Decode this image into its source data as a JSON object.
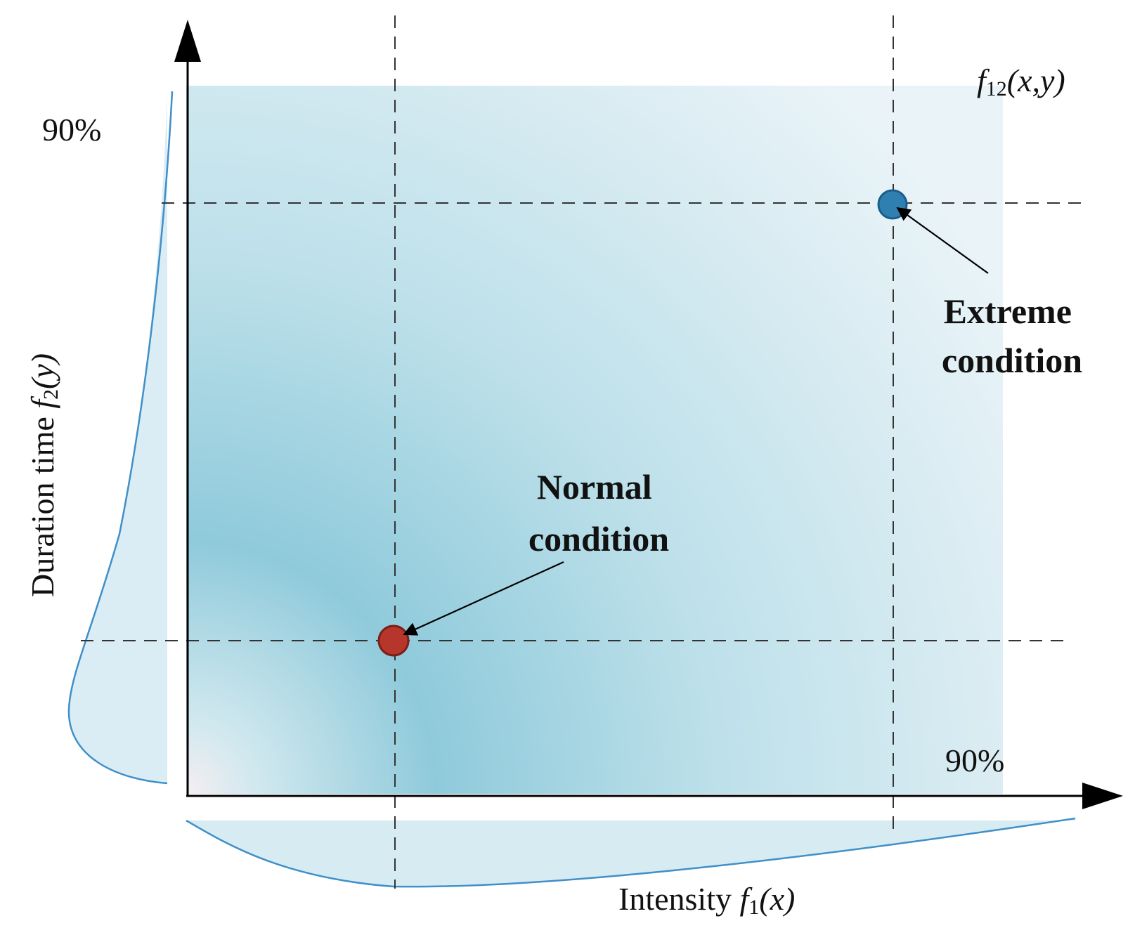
{
  "labels": {
    "joint_pdf": [
      "f",
      "12",
      "(x,y)"
    ],
    "y_percentile": "90%",
    "x_percentile": "90%",
    "y_axis": [
      "Duration time ",
      "f",
      "2",
      "(y)"
    ],
    "x_axis": [
      "Intensity  ",
      "f",
      "1",
      "(x)"
    ],
    "extreme": [
      "Extreme",
      "condition"
    ],
    "normal": [
      "Normal",
      "condition"
    ]
  },
  "points": {
    "normal": {
      "label": "Normal condition",
      "color": "#b6362c"
    },
    "extreme": {
      "label": "Extreme condition",
      "color": "#2f7fb0"
    }
  },
  "colors": {
    "shading": "#8fcadb",
    "curve": "#3f8fc8"
  }
}
